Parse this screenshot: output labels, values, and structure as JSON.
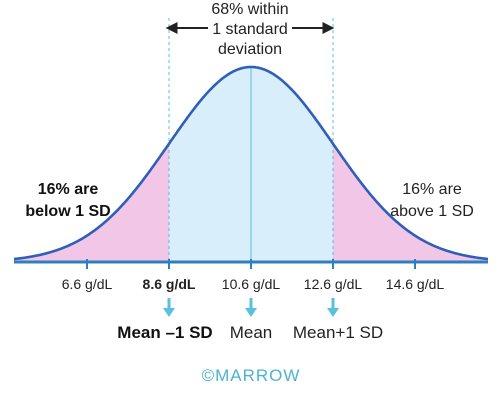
{
  "annotation": {
    "range_line1": "68% within",
    "range_line2": "1 standard",
    "range_line3": "deviation",
    "left_line1": "16% are",
    "left_line2": "below 1 SD",
    "right_line1": "16% are",
    "right_line2": "above 1 SD"
  },
  "axis": {
    "ticks": [
      {
        "value": 6.6,
        "label": "6.6 g/dL",
        "bold": false
      },
      {
        "value": 8.6,
        "label": "8.6 g/dL",
        "bold": true
      },
      {
        "value": 10.6,
        "label": "10.6 g/dL",
        "bold": false
      },
      {
        "value": 12.6,
        "label": "12.6 g/dL",
        "bold": false
      },
      {
        "value": 14.6,
        "label": "14.6 g/dL",
        "bold": false
      }
    ]
  },
  "markers": {
    "minus_sd": "Mean –1 SD",
    "mean": "Mean",
    "plus_sd": "Mean+1 SD"
  },
  "watermark": "©MARROW",
  "colors": {
    "curve": "#2f5fb8",
    "center_fill": "#d9eefb",
    "tail_fill": "#f2c6e6",
    "arrow": "#5bbfe0",
    "tick": "#2f7fc0",
    "watermark": "#4bb3d3"
  }
}
